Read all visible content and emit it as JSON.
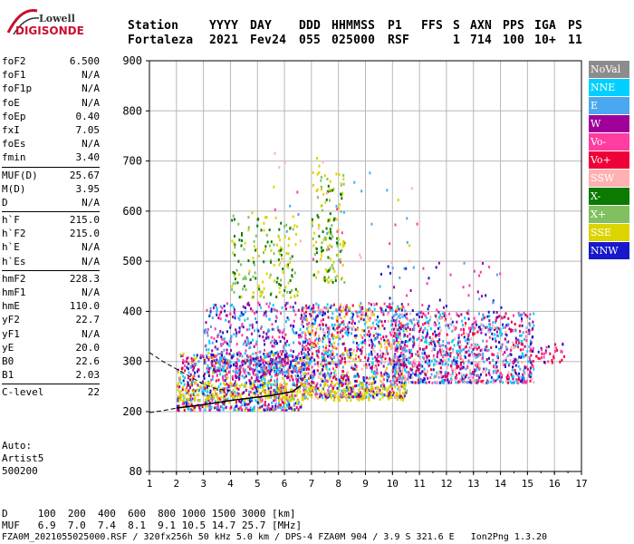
{
  "logo": {
    "brand_top": "Lowell",
    "brand_bottom": "DIGISONDE"
  },
  "header": {
    "labels": [
      "Station",
      "YYYY",
      "DAY",
      "DDD",
      "HHMMSS",
      "P1",
      "FFS",
      "S",
      "AXN",
      "PPS",
      "IGA",
      "PS"
    ],
    "values": [
      "Fortaleza",
      "2021",
      "Fev24",
      "055",
      "025000",
      "RSF",
      "",
      "1",
      "714",
      "100",
      "10+",
      "11"
    ]
  },
  "params": {
    "group1": [
      {
        "name": "foF2",
        "value": "6.500"
      },
      {
        "name": "foF1",
        "value": "N/A"
      },
      {
        "name": "foF1p",
        "value": "N/A"
      },
      {
        "name": "foE",
        "value": "N/A"
      },
      {
        "name": "foEp",
        "value": "0.40"
      },
      {
        "name": "fxI",
        "value": "7.05"
      },
      {
        "name": "foEs",
        "value": "N/A"
      },
      {
        "name": "fmin",
        "value": "3.40"
      }
    ],
    "group2": [
      {
        "name": "MUF(D)",
        "value": "25.67"
      },
      {
        "name": "M(D)",
        "value": "3.95"
      },
      {
        "name": "D",
        "value": "N/A"
      }
    ],
    "group3": [
      {
        "name": "h`F",
        "value": "215.0"
      },
      {
        "name": "h`F2",
        "value": "215.0"
      },
      {
        "name": "h`E",
        "value": "N/A"
      },
      {
        "name": "h`Es",
        "value": "N/A"
      }
    ],
    "group4": [
      {
        "name": "hmF2",
        "value": "228.3"
      },
      {
        "name": "hmF1",
        "value": "N/A"
      },
      {
        "name": "hmE",
        "value": "110.0"
      },
      {
        "name": "yF2",
        "value": "22.7"
      },
      {
        "name": "yF1",
        "value": "N/A"
      },
      {
        "name": "yE",
        "value": "20.0"
      },
      {
        "name": "B0",
        "value": "22.6"
      },
      {
        "name": "B1",
        "value": "2.03"
      }
    ],
    "group5": [
      {
        "name": "C-level",
        "value": "22"
      }
    ]
  },
  "auto": {
    "line1": "Auto:",
    "line2": "Artist5",
    "line3": "500200"
  },
  "legend": [
    {
      "label": "NoVal",
      "color": "#8c8c8c"
    },
    {
      "label": "NNE",
      "color": "#00cfff"
    },
    {
      "label": "E",
      "color": "#4aa8f0"
    },
    {
      "label": "W",
      "color": "#a0009a"
    },
    {
      "label": "Vo-",
      "color": "#ff3ca0"
    },
    {
      "label": "Vo+",
      "color": "#ee0038"
    },
    {
      "label": "SSW",
      "color": "#ffb0b0"
    },
    {
      "label": "X-",
      "color": "#0a7a00"
    },
    {
      "label": "X+",
      "color": "#80c060"
    },
    {
      "label": "SSE",
      "color": "#dcd400"
    },
    {
      "label": "NNW",
      "color": "#1818cc"
    }
  ],
  "bottom": {
    "d_line": "D     100  200  400  600  800 1000 1500 3000 [km]",
    "muf_line": "MUF   6.9  7.0  7.4  8.1  9.1 10.5 14.7 25.7 [MHz]",
    "file_line": "FZA0M_2021055025000.RSF / 320fx256h 50 kHz 5.0 km / DPS-4 FZA0M 904 / 3.9 S 321.6 E   Ion2Png 1.3.20"
  },
  "chart_data": {
    "type": "scatter",
    "title": "",
    "xlabel": "",
    "ylabel": "",
    "xlim": [
      1,
      17
    ],
    "ylim": [
      80,
      900
    ],
    "x_ticks": [
      "1",
      "2",
      "3",
      "4",
      "5",
      "6",
      "7",
      "8",
      "9",
      "10",
      "11",
      "12",
      "13",
      "14",
      "15",
      "16",
      "17"
    ],
    "y_ticks": [
      "80",
      "200",
      "300",
      "400",
      "500",
      "600",
      "700",
      "800",
      "900"
    ],
    "grid": true,
    "legend_placement": "right",
    "profile_curve": [
      [
        2.0,
        207
      ],
      [
        3.0,
        214
      ],
      [
        4.0,
        222
      ],
      [
        5.0,
        229
      ],
      [
        5.5,
        232
      ],
      [
        6.0,
        237
      ],
      [
        6.3,
        240
      ],
      [
        6.6,
        252
      ]
    ],
    "dashed_upper": [
      [
        1.0,
        318
      ],
      [
        1.5,
        300
      ],
      [
        2.0,
        285
      ],
      [
        2.5,
        270
      ],
      [
        3.0,
        255
      ],
      [
        3.5,
        245
      ],
      [
        4.0,
        242
      ]
    ],
    "dashed_lower": [
      [
        1.0,
        198
      ],
      [
        1.5,
        202
      ],
      [
        2.0,
        207
      ]
    ],
    "clusters": [
      {
        "x": [
          2.0,
          6.6
        ],
        "y": [
          205,
          320
        ],
        "n": 900,
        "series": [
          4,
          5,
          3,
          10,
          2,
          9,
          1
        ]
      },
      {
        "x": [
          3.0,
          6.8
        ],
        "y": [
          280,
          420
        ],
        "n": 500,
        "series": [
          3,
          2,
          1,
          10,
          4
        ]
      },
      {
        "x": [
          6.6,
          10.5
        ],
        "y": [
          230,
          420
        ],
        "n": 1200,
        "series": [
          4,
          5,
          10,
          3,
          2,
          6,
          9,
          1
        ]
      },
      {
        "x": [
          10.0,
          15.2
        ],
        "y": [
          260,
          400
        ],
        "n": 1100,
        "series": [
          3,
          2,
          10,
          5,
          4,
          1,
          6
        ]
      },
      {
        "x": [
          15.0,
          16.4
        ],
        "y": [
          300,
          340
        ],
        "n": 40,
        "series": [
          4,
          5,
          10
        ]
      },
      {
        "x": [
          4.0,
          6.5
        ],
        "y": [
          430,
          600
        ],
        "n": 170,
        "series": [
          9,
          8,
          7
        ]
      },
      {
        "x": [
          7.0,
          8.2
        ],
        "y": [
          460,
          680
        ],
        "n": 140,
        "series": [
          9,
          8,
          7
        ]
      },
      {
        "x": [
          2.0,
          10.5
        ],
        "y": [
          225,
          260
        ],
        "n": 260,
        "series": [
          9
        ]
      },
      {
        "x": [
          9.5,
          14.0
        ],
        "y": [
          400,
          500
        ],
        "n": 60,
        "series": [
          2,
          3,
          10,
          4
        ]
      },
      {
        "x": [
          5.5,
          11.0
        ],
        "y": [
          500,
          720
        ],
        "n": 50,
        "series": [
          6,
          9,
          4,
          2
        ]
      }
    ]
  }
}
